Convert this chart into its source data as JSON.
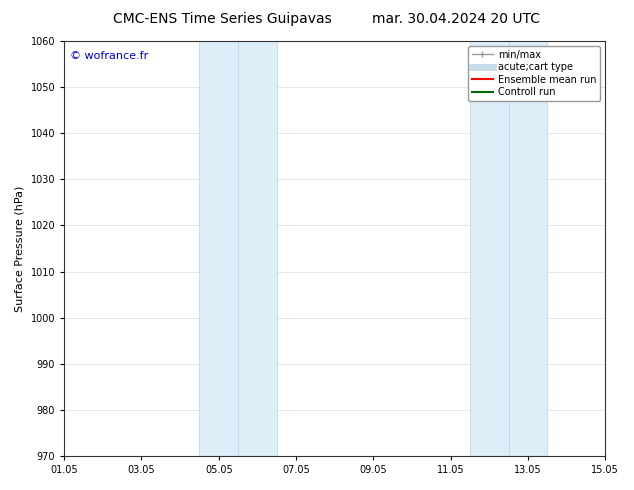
{
  "title_left": "CMC-ENS Time Series Guipavas",
  "title_right": "mar. 30.04.2024 20 UTC",
  "ylabel": "Surface Pressure (hPa)",
  "ylim": [
    970,
    1060
  ],
  "yticks": [
    970,
    980,
    990,
    1000,
    1010,
    1020,
    1030,
    1040,
    1050,
    1060
  ],
  "xlim_start": 0.0,
  "xlim_end": 14.0,
  "xtick_labels": [
    "01.05",
    "03.05",
    "05.05",
    "07.05",
    "09.05",
    "11.05",
    "13.05",
    "15.05"
  ],
  "xtick_positions": [
    0,
    2,
    4,
    6,
    8,
    10,
    12,
    14
  ],
  "shaded_regions": [
    {
      "x_start": 3.5,
      "x_end": 4.5,
      "color": "#ddeef8",
      "edgecolor": "#b8d4ea"
    },
    {
      "x_start": 4.5,
      "x_end": 5.5,
      "color": "#ddeef8",
      "edgecolor": "#b8d4ea"
    },
    {
      "x_start": 10.5,
      "x_end": 11.5,
      "color": "#ddeef8",
      "edgecolor": "#b8d4ea"
    },
    {
      "x_start": 11.5,
      "x_end": 12.5,
      "color": "#ddeef8",
      "edgecolor": "#b8d4ea"
    }
  ],
  "watermark_text": "© wofrance.fr",
  "watermark_color": "#0000cc",
  "legend_entries": [
    {
      "label": "min/max",
      "color": "#999999",
      "lw": 1.0,
      "type": "line_with_caps"
    },
    {
      "label": "acute;cart type",
      "color": "#c8dcea",
      "lw": 5,
      "type": "line"
    },
    {
      "label": "Ensemble mean run",
      "color": "#ff0000",
      "lw": 1.5,
      "type": "line"
    },
    {
      "label": "Controll run",
      "color": "#006600",
      "lw": 1.5,
      "type": "line"
    }
  ],
  "background_color": "#ffffff",
  "grid_color": "#dddddd",
  "title_fontsize": 10,
  "axis_label_fontsize": 8,
  "tick_fontsize": 7,
  "legend_fontsize": 7
}
